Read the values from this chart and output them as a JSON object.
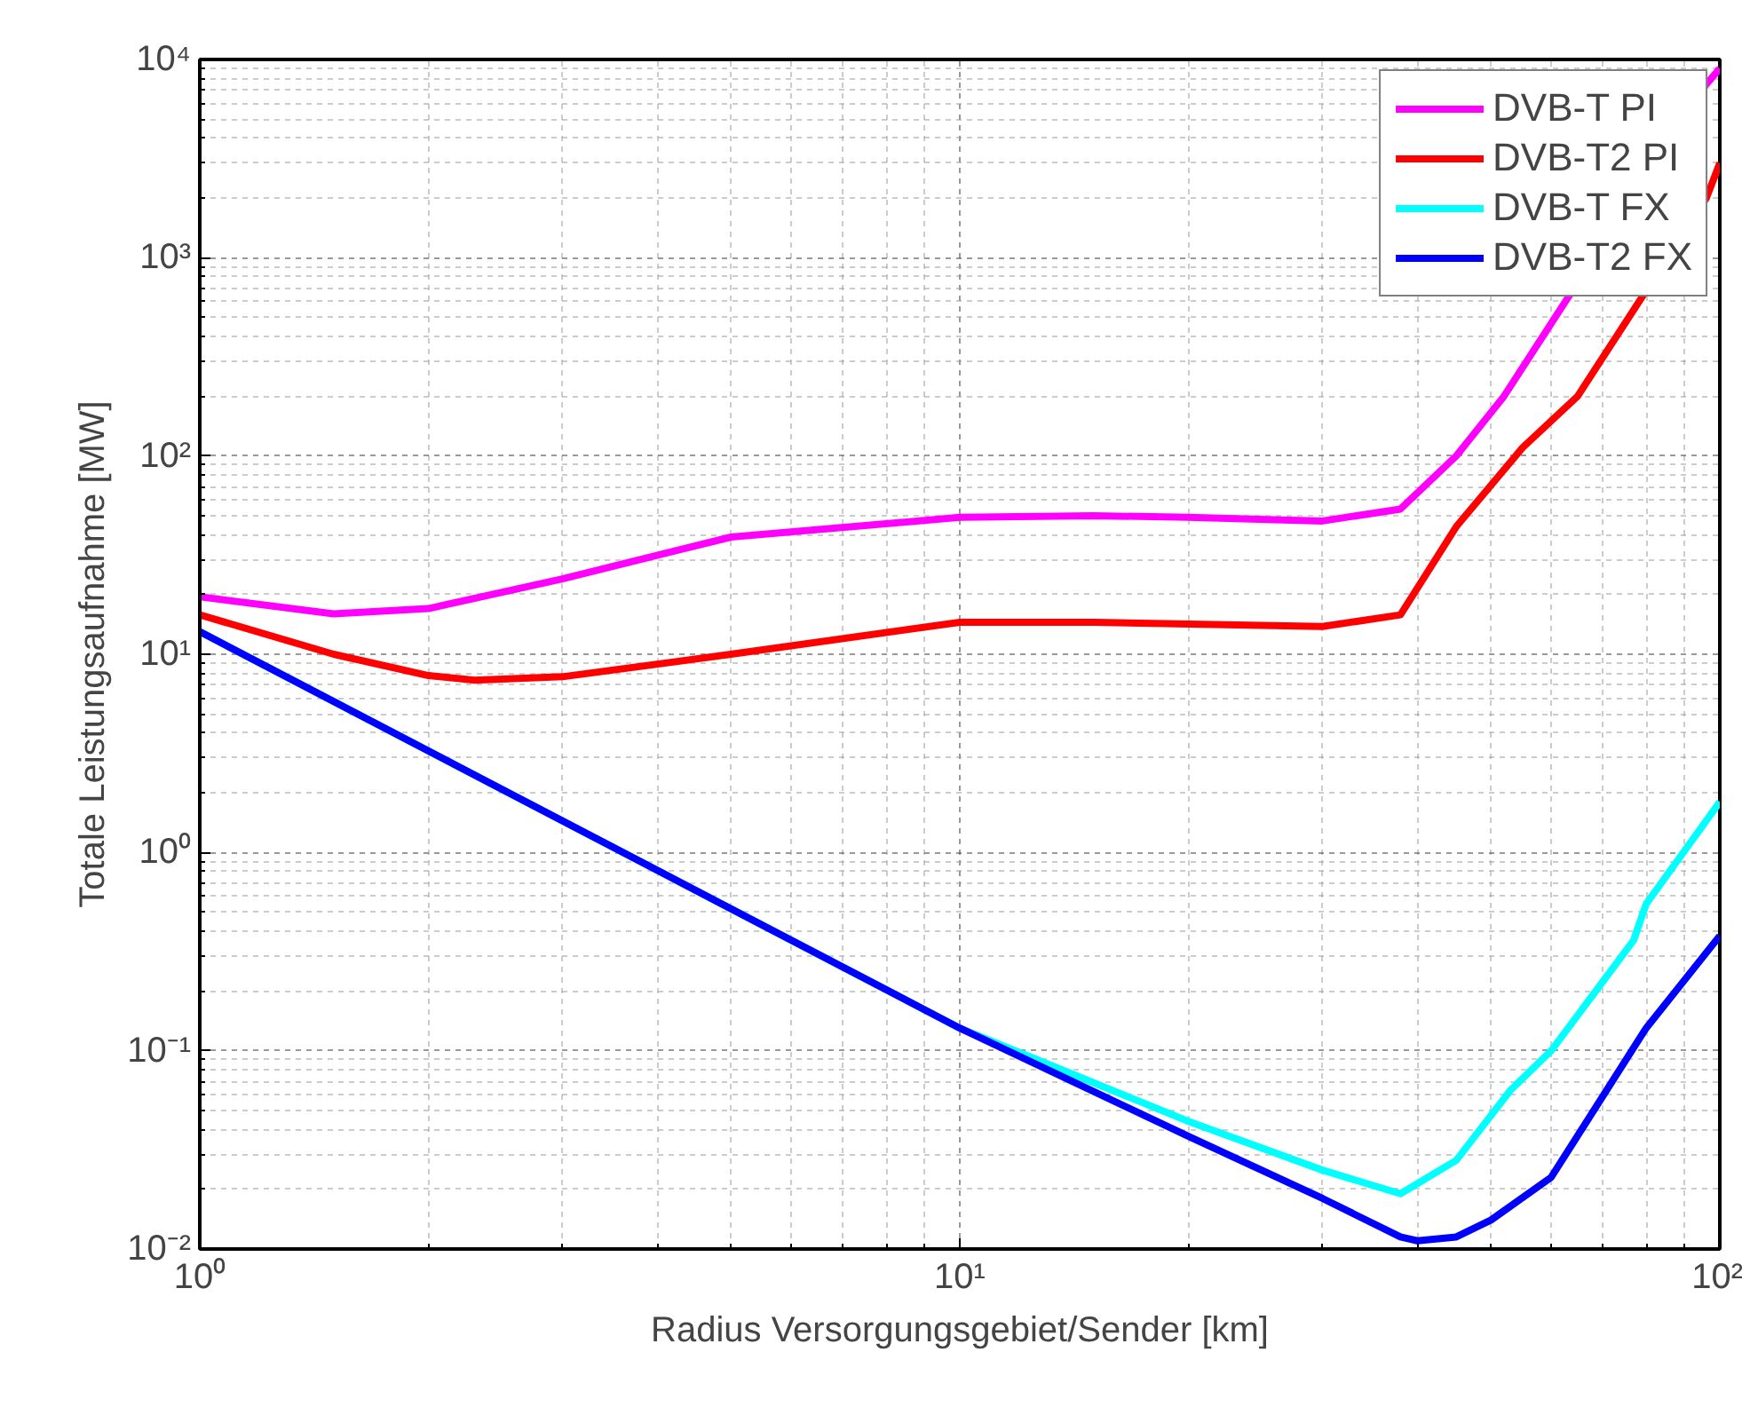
{
  "chart_data": {
    "type": "line",
    "xlabel": "Radius Versorgungsgebiet/Sender [km]",
    "ylabel": "Totale Leistungsaufnahme [MW]",
    "log": "xy",
    "grid": true,
    "legend": "top right",
    "line_style": "solid",
    "marker": "none",
    "xlim": [
      1,
      100
    ],
    "ylim": [
      0.01,
      10000
    ],
    "xticks": [
      {
        "value": 1,
        "label": "10⁰"
      },
      {
        "value": 10,
        "label": "10¹"
      },
      {
        "value": 100,
        "label": "10²"
      }
    ],
    "yticks": [
      {
        "value": 0.01,
        "label": "10⁻²"
      },
      {
        "value": 0.1,
        "label": "10⁻¹"
      },
      {
        "value": 1,
        "label": "10⁰"
      },
      {
        "value": 10,
        "label": "10¹"
      },
      {
        "value": 100,
        "label": "10²"
      },
      {
        "value": 1000,
        "label": "10³"
      },
      {
        "value": 10000,
        "label": "10⁴"
      }
    ],
    "series": [
      {
        "name": "DVB-T PI",
        "color": "#ff00ff",
        "x": [
          1,
          1.5,
          2,
          3,
          5,
          10,
          15,
          20,
          30,
          38,
          45,
          52,
          96,
          100
        ],
        "values": [
          19.5,
          16,
          17,
          24,
          39,
          49,
          50,
          49,
          47,
          54,
          100,
          200,
          7500,
          9000
        ]
      },
      {
        "name": "DVB-T2 PI",
        "color": "#ff0000",
        "x": [
          1,
          1.5,
          2,
          2.3,
          3,
          5,
          10,
          15,
          30,
          38,
          45,
          55,
          65,
          96,
          100
        ],
        "values": [
          15.8,
          10,
          7.8,
          7.4,
          7.7,
          10,
          14.5,
          14.5,
          13.8,
          15.8,
          44,
          110,
          200,
          2000,
          3000
        ]
      },
      {
        "name": "DVB-T FX",
        "color": "#00ffff",
        "x": [
          1,
          10,
          20,
          30,
          38,
          45,
          53,
          60,
          77,
          80,
          100
        ],
        "values": [
          13,
          0.13,
          0.044,
          0.025,
          0.019,
          0.028,
          0.063,
          0.1,
          0.36,
          0.55,
          1.8
        ]
      },
      {
        "name": "DVB-T2 FX",
        "color": "#0000ff",
        "x": [
          1,
          10,
          20,
          30,
          38,
          40,
          45,
          50,
          60,
          80,
          100
        ],
        "values": [
          13,
          0.13,
          0.037,
          0.018,
          0.0115,
          0.011,
          0.0115,
          0.014,
          0.023,
          0.13,
          0.38
        ]
      }
    ]
  }
}
